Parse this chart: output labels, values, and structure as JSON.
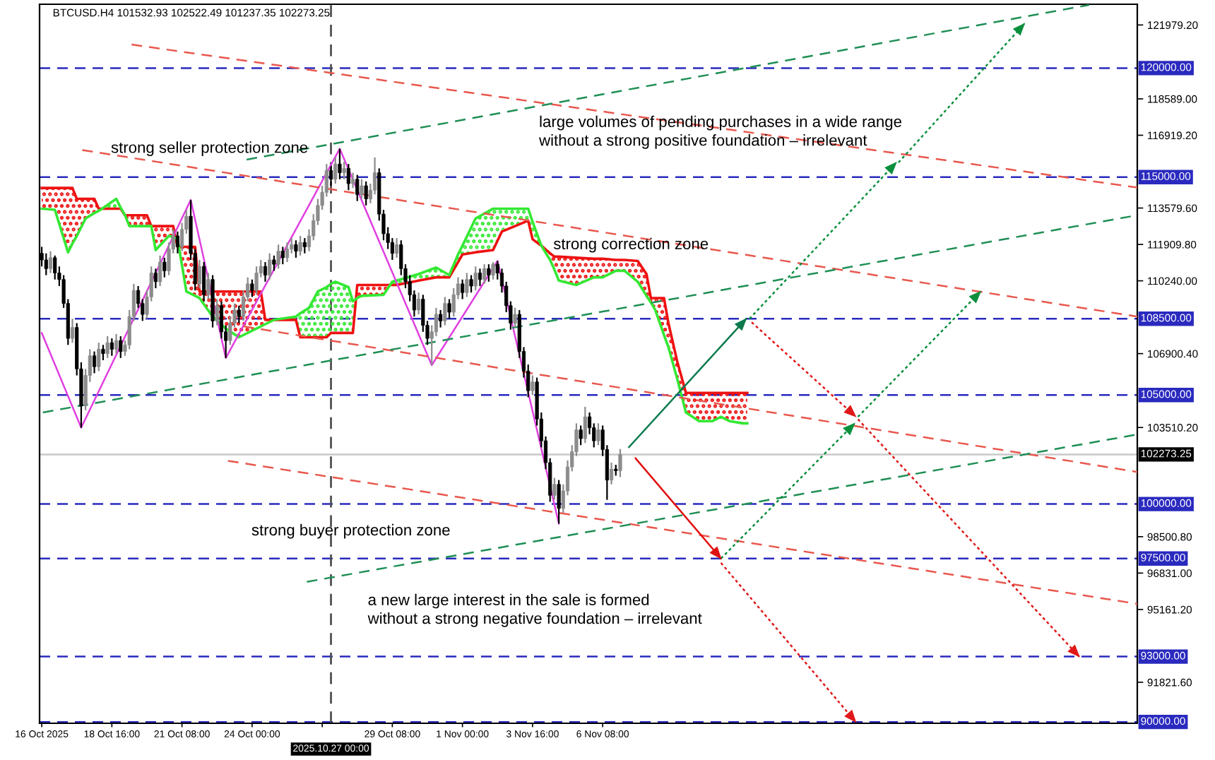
{
  "chart_data": {
    "type": "candlestick",
    "title": "BTCUSD.H4 101532.93 102522.49 101237.35 102273.25",
    "x": [
      "2025-10-16T00:00",
      "2025-10-16T04:00",
      "2025-10-16T08:00",
      "2025-10-16T12:00",
      "2025-10-16T16:00",
      "2025-10-16T20:00",
      "2025-10-17T00:00",
      "2025-10-17T04:00",
      "2025-10-17T08:00",
      "2025-10-17T12:00",
      "2025-10-17T16:00",
      "2025-10-17T20:00",
      "2025-10-18T00:00",
      "2025-10-18T04:00",
      "2025-10-18T08:00",
      "2025-10-18T12:00",
      "2025-10-18T16:00",
      "2025-10-18T20:00",
      "2025-10-19T00:00",
      "2025-10-19T04:00",
      "2025-10-19T08:00",
      "2025-10-19T12:00",
      "2025-10-19T16:00",
      "2025-10-19T20:00",
      "2025-10-20T00:00",
      "2025-10-20T04:00",
      "2025-10-20T08:00",
      "2025-10-20T12:00",
      "2025-10-20T16:00",
      "2025-10-20T20:00",
      "2025-10-21T00:00",
      "2025-10-21T04:00",
      "2025-10-21T08:00",
      "2025-10-21T12:00",
      "2025-10-21T16:00",
      "2025-10-21T20:00",
      "2025-10-22T00:00",
      "2025-10-22T04:00",
      "2025-10-22T08:00",
      "2025-10-22T12:00",
      "2025-10-22T16:00",
      "2025-10-22T20:00",
      "2025-10-23T00:00",
      "2025-10-23T04:00",
      "2025-10-23T08:00",
      "2025-10-23T12:00",
      "2025-10-23T16:00",
      "2025-10-23T20:00",
      "2025-10-24T00:00",
      "2025-10-24T04:00",
      "2025-10-24T08:00",
      "2025-10-24T12:00",
      "2025-10-24T16:00",
      "2025-10-24T20:00",
      "2025-10-25T00:00",
      "2025-10-25T04:00",
      "2025-10-25T08:00",
      "2025-10-25T12:00",
      "2025-10-25T16:00",
      "2025-10-25T20:00",
      "2025-10-26T00:00",
      "2025-10-26T04:00",
      "2025-10-26T08:00",
      "2025-10-26T12:00",
      "2025-10-26T16:00",
      "2025-10-26T20:00",
      "2025-10-27T00:00",
      "2025-10-27T04:00",
      "2025-10-27T08:00",
      "2025-10-27T12:00",
      "2025-10-27T16:00",
      "2025-10-27T20:00",
      "2025-10-28T00:00",
      "2025-10-28T04:00",
      "2025-10-28T08:00",
      "2025-10-28T12:00",
      "2025-10-28T16:00",
      "2025-10-28T20:00",
      "2025-10-29T00:00",
      "2025-10-29T04:00",
      "2025-10-29T08:00",
      "2025-10-29T12:00",
      "2025-10-29T16:00",
      "2025-10-29T20:00",
      "2025-10-30T00:00",
      "2025-10-30T04:00",
      "2025-10-30T08:00",
      "2025-10-30T12:00",
      "2025-10-30T16:00",
      "2025-10-30T20:00",
      "2025-10-31T00:00",
      "2025-10-31T04:00",
      "2025-10-31T08:00",
      "2025-10-31T12:00",
      "2025-10-31T16:00",
      "2025-10-31T20:00",
      "2025-11-01T00:00",
      "2025-11-01T04:00",
      "2025-11-01T08:00",
      "2025-11-01T12:00",
      "2025-11-01T16:00",
      "2025-11-01T20:00",
      "2025-11-02T00:00",
      "2025-11-02T04:00",
      "2025-11-02T08:00",
      "2025-11-02T12:00",
      "2025-11-02T16:00",
      "2025-11-02T20:00",
      "2025-11-03T00:00",
      "2025-11-03T04:00",
      "2025-11-03T08:00",
      "2025-11-03T12:00",
      "2025-11-03T16:00",
      "2025-11-03T20:00",
      "2025-11-04T00:00",
      "2025-11-04T04:00",
      "2025-11-04T08:00",
      "2025-11-04T12:00",
      "2025-11-04T16:00",
      "2025-11-04T20:00",
      "2025-11-05T00:00",
      "2025-11-05T04:00",
      "2025-11-05T08:00",
      "2025-11-05T12:00",
      "2025-11-05T16:00",
      "2025-11-05T20:00",
      "2025-11-06T00:00",
      "2025-11-06T04:00",
      "2025-11-06T08:00",
      "2025-11-06T12:00",
      "2025-11-06T16:00",
      "2025-11-06T20:00",
      "2025-11-07T00:00"
    ],
    "ohlc": [
      [
        111500,
        111800,
        110900,
        111200
      ],
      [
        111200,
        111500,
        110500,
        110800
      ],
      [
        110800,
        111600,
        110600,
        111300
      ],
      [
        111300,
        111400,
        110300,
        110600
      ],
      [
        110600,
        110900,
        110000,
        110300
      ],
      [
        110300,
        110500,
        109000,
        109200
      ],
      [
        109200,
        109400,
        107300,
        107600
      ],
      [
        107600,
        108500,
        107400,
        108100
      ],
      [
        108100,
        108300,
        105900,
        106200
      ],
      [
        106200,
        106500,
        103500,
        104500
      ],
      [
        104500,
        106200,
        104300,
        105900
      ],
      [
        105900,
        107100,
        105600,
        106800
      ],
      [
        106800,
        107000,
        106000,
        106300
      ],
      [
        106300,
        107400,
        106100,
        107100
      ],
      [
        107100,
        107300,
        106600,
        106900
      ],
      [
        106900,
        107700,
        106700,
        107400
      ],
      [
        107400,
        107600,
        106800,
        107100
      ],
      [
        107100,
        107800,
        106900,
        107500
      ],
      [
        107500,
        107700,
        106700,
        107000
      ],
      [
        107000,
        107500,
        106800,
        107300
      ],
      [
        107300,
        108900,
        107100,
        108600
      ],
      [
        108600,
        110100,
        108400,
        109800
      ],
      [
        109800,
        110000,
        109000,
        109200
      ],
      [
        109200,
        109400,
        108400,
        108700
      ],
      [
        108700,
        109800,
        108500,
        109500
      ],
      [
        109500,
        110900,
        109300,
        110600
      ],
      [
        110600,
        110800,
        109900,
        110200
      ],
      [
        110200,
        111400,
        110000,
        111100
      ],
      [
        111100,
        111300,
        110400,
        110700
      ],
      [
        110700,
        112000,
        110500,
        111700
      ],
      [
        111700,
        112600,
        111500,
        112300
      ],
      [
        112300,
        112500,
        111500,
        111800
      ],
      [
        111800,
        112900,
        111600,
        112600
      ],
      [
        112600,
        113500,
        112400,
        113200
      ],
      [
        113200,
        113950,
        111200,
        111500
      ],
      [
        111500,
        111700,
        109800,
        110100
      ],
      [
        110100,
        111200,
        109900,
        110900
      ],
      [
        110900,
        111100,
        109300,
        109600
      ],
      [
        109600,
        110600,
        109400,
        110300
      ],
      [
        110300,
        110500,
        108100,
        108400
      ],
      [
        108400,
        109400,
        108200,
        109100
      ],
      [
        109100,
        109300,
        107600,
        107900
      ],
      [
        107900,
        108200,
        106700,
        107500
      ],
      [
        107500,
        108600,
        107300,
        108300
      ],
      [
        108300,
        109200,
        108100,
        108900
      ],
      [
        108900,
        109100,
        108300,
        108600
      ],
      [
        108600,
        109800,
        108400,
        109500
      ],
      [
        109500,
        110400,
        109300,
        110100
      ],
      [
        110100,
        110300,
        109500,
        109800
      ],
      [
        109800,
        110900,
        109600,
        110600
      ],
      [
        110600,
        111200,
        110400,
        110900
      ],
      [
        110900,
        111100,
        110200,
        110500
      ],
      [
        110500,
        111500,
        110300,
        111200
      ],
      [
        111200,
        111400,
        110700,
        111000
      ],
      [
        111000,
        111900,
        110800,
        111600
      ],
      [
        111600,
        111800,
        111000,
        111300
      ],
      [
        111300,
        112000,
        111100,
        111700
      ],
      [
        111700,
        112200,
        111500,
        111900
      ],
      [
        111900,
        112100,
        111300,
        111600
      ],
      [
        111600,
        112300,
        111400,
        112000
      ],
      [
        112000,
        112200,
        111500,
        111800
      ],
      [
        111800,
        112600,
        111600,
        112300
      ],
      [
        112300,
        113300,
        112100,
        113000
      ],
      [
        113000,
        114000,
        112800,
        113700
      ],
      [
        113700,
        114600,
        113500,
        114300
      ],
      [
        114300,
        115600,
        114100,
        115300
      ],
      [
        115300,
        115500,
        114600,
        114900
      ],
      [
        114900,
        115900,
        114700,
        115600
      ],
      [
        115600,
        116300,
        114900,
        115200
      ],
      [
        115200,
        115700,
        114900,
        115400
      ],
      [
        115400,
        115600,
        114400,
        114700
      ],
      [
        114700,
        115200,
        114500,
        114900
      ],
      [
        114900,
        115100,
        113900,
        114200
      ],
      [
        114200,
        114900,
        114000,
        114600
      ],
      [
        114600,
        114800,
        113700,
        114000
      ],
      [
        114000,
        114700,
        113800,
        114400
      ],
      [
        114400,
        115900,
        114200,
        115200
      ],
      [
        115200,
        115400,
        113000,
        113300
      ],
      [
        113300,
        113500,
        112100,
        112400
      ],
      [
        112400,
        112700,
        111700,
        112000
      ],
      [
        112000,
        112200,
        111200,
        111500
      ],
      [
        111500,
        112200,
        111300,
        111900
      ],
      [
        111900,
        112100,
        110500,
        110800
      ],
      [
        110800,
        111000,
        109900,
        110200
      ],
      [
        110200,
        110500,
        109300,
        109600
      ],
      [
        109600,
        109800,
        108600,
        108900
      ],
      [
        108900,
        109700,
        108700,
        109400
      ],
      [
        109400,
        109600,
        107900,
        108200
      ],
      [
        108200,
        108400,
        107300,
        107600
      ],
      [
        107600,
        108200,
        106370,
        107900
      ],
      [
        107900,
        109000,
        107700,
        108700
      ],
      [
        108700,
        108900,
        108100,
        108400
      ],
      [
        108400,
        109500,
        108200,
        109200
      ],
      [
        109200,
        109400,
        108500,
        108800
      ],
      [
        108800,
        109900,
        108600,
        109600
      ],
      [
        109600,
        110400,
        109400,
        110100
      ],
      [
        110100,
        110300,
        109400,
        109700
      ],
      [
        109700,
        110600,
        109500,
        110300
      ],
      [
        110300,
        110500,
        109700,
        110000
      ],
      [
        110000,
        110900,
        109800,
        110600
      ],
      [
        110600,
        110800,
        110000,
        110300
      ],
      [
        110300,
        111000,
        110100,
        110800
      ],
      [
        110800,
        111000,
        110200,
        110500
      ],
      [
        110500,
        111100,
        110300,
        111000
      ],
      [
        111000,
        111150,
        110300,
        110600
      ],
      [
        110600,
        110800,
        109700,
        110000
      ],
      [
        110000,
        110200,
        108800,
        109100
      ],
      [
        109100,
        109300,
        108000,
        108300
      ],
      [
        108300,
        109000,
        108100,
        108700
      ],
      [
        108700,
        108900,
        106700,
        107000
      ],
      [
        107000,
        107200,
        105800,
        106100
      ],
      [
        106100,
        106400,
        104900,
        105200
      ],
      [
        105200,
        105900,
        105000,
        105600
      ],
      [
        105600,
        105800,
        103600,
        103900
      ],
      [
        103900,
        104200,
        102600,
        102900
      ],
      [
        102900,
        103100,
        101600,
        101900
      ],
      [
        101900,
        102100,
        100100,
        100400
      ],
      [
        100400,
        101200,
        100200,
        100900
      ],
      [
        100900,
        101100,
        99100,
        99800
      ],
      [
        99800,
        100900,
        99600,
        100600
      ],
      [
        100600,
        102000,
        100400,
        101700
      ],
      [
        101700,
        102700,
        101500,
        102400
      ],
      [
        102400,
        103700,
        102200,
        103400
      ],
      [
        103400,
        103600,
        102700,
        103000
      ],
      [
        103000,
        104460,
        102800,
        104000
      ],
      [
        104000,
        104200,
        103200,
        103500
      ],
      [
        103500,
        103700,
        102600,
        102900
      ],
      [
        102900,
        103700,
        102700,
        103400
      ],
      [
        103400,
        103600,
        102200,
        102500
      ],
      [
        102500,
        102700,
        100190,
        101100
      ],
      [
        101100,
        101900,
        100900,
        101600
      ],
      [
        101600,
        101800,
        101300,
        101530
      ],
      [
        101532.93,
        102522.49,
        101237.35,
        102273.25
      ]
    ],
    "series": [
      {
        "type": "line",
        "color": "#ee1111",
        "x": [
          "2025-10-16T00:00",
          "2025-10-16T12:00",
          "2025-10-17T00:00",
          "2025-10-17T04:00",
          "2025-10-17T08:00",
          "2025-10-17T16:00",
          "2025-10-18T00:00",
          "2025-10-18T04:00",
          "2025-10-18T07:00",
          "2025-10-18T20:00",
          "2025-10-19T00:00",
          "2025-10-19T04:00",
          "2025-10-19T08:00",
          "2025-10-20T00:00",
          "2025-10-20T04:00",
          "2025-10-20T08:00",
          "2025-10-20T20:00",
          "2025-10-21T00:00",
          "2025-10-21T02:20",
          "2025-10-21T04:00",
          "2025-10-21T05:10",
          "2025-10-21T12:00",
          "2025-10-21T20:00",
          "2025-10-22T00:00",
          "2025-10-22T12:00",
          "2025-10-23T00:00",
          "2025-10-23T12:00",
          "2025-10-24T04:00",
          "2025-10-24T08:00",
          "2025-10-24T12:00",
          "2025-10-24T20:00",
          "2025-10-25T16:00",
          "2025-10-25T20:00",
          "2025-10-26T04:00",
          "2025-10-26T12:00",
          "2025-10-26T20:00",
          "2025-10-27T00:00",
          "2025-10-27T04:00",
          "2025-10-27T16:00",
          "2025-10-27T20:00",
          "2025-10-27T22:50",
          "2025-10-28T00:00",
          "2025-10-28T04:00",
          "2025-10-29T00:00",
          "2025-10-29T06:00",
          "2025-10-29T08:00",
          "2025-10-29T12:00",
          "2025-10-30T08:00",
          "2025-10-31T00:00",
          "2025-10-31T12:00",
          "2025-10-31T20:00",
          "2025-11-01T00:00",
          "2025-11-01T12:00",
          "2025-11-02T04:00",
          "2025-11-02T12:00",
          "2025-11-03T12:00",
          "2025-11-03T16:00",
          "2025-11-04T00:00",
          "2025-11-04T08:00",
          "2025-11-04T12:00",
          "2025-11-04T16:00",
          "2025-11-05T08:00",
          "2025-11-06T00:00",
          "2025-11-06T08:00",
          "2025-11-06T20:00",
          "2025-11-07T04:00",
          "2025-11-07T16:00",
          "2025-11-08T00:00",
          "2025-11-08T04:00",
          "2025-11-08T08:00",
          "2025-11-08T16:00",
          "2025-11-08T20:00",
          "2025-11-09T04:00",
          "2025-11-09T12:00",
          "2025-11-10T00:00",
          "2025-11-10T12:00",
          "2025-11-10T20:00",
          "2025-11-11T04:00",
          "2025-11-11T16:00",
          "2025-11-11T20:00"
        ],
        "values": [
          114500,
          114500,
          114500,
          114500,
          114000,
          114000,
          114000,
          113550,
          113550,
          113550,
          113550,
          113250,
          113250,
          113250,
          112750,
          112750,
          112750,
          112750,
          112200,
          111800,
          111800,
          111800,
          111800,
          109750,
          109750,
          109750,
          109750,
          109750,
          109750,
          108450,
          108450,
          108450,
          107650,
          107650,
          107650,
          107650,
          107850,
          107850,
          107850,
          107850,
          109400,
          110050,
          110050,
          110050,
          110050,
          110050,
          110050,
          110250,
          110400,
          110400,
          111100,
          111450,
          111550,
          111650,
          112500,
          113000,
          112150,
          111850,
          111500,
          111350,
          111350,
          111300,
          111250,
          111250,
          111200,
          111200,
          111150,
          110550,
          109450,
          109450,
          109450,
          108300,
          106550,
          105100,
          105100,
          105100,
          105100,
          105100,
          105100,
          105100
        ],
        "lower": [
          113550,
          113500,
          111550,
          111950,
          112300,
          113100,
          113350,
          113450,
          113550,
          null,
          null,
          113250,
          112750,
          112750,
          112750,
          111650,
          112300,
          112250,
          112200,
          null,
          111800,
          109750,
          109550,
          109450,
          108600,
          108050,
          107650,
          108050,
          108150,
          108250,
          108450,
          null,
          null,
          null,
          null,
          null,
          null,
          null,
          null,
          null,
          109400,
          109450,
          109550,
          109600,
          110050,
          null,
          null,
          null,
          null,
          null,
          null,
          null,
          null,
          null,
          null,
          null,
          null,
          111850,
          111200,
          110750,
          110250,
          110050,
          110400,
          110400,
          110700,
          110700,
          110200,
          109550,
          109250,
          108900,
          107750,
          107200,
          105750,
          104200,
          103800,
          103800,
          104000,
          103800,
          103700,
          103700
        ],
        "upper": [
          114500,
          114500,
          114500,
          114500,
          114000,
          114000,
          114000,
          113550,
          113550,
          null,
          null,
          113250,
          113250,
          113250,
          112750,
          112750,
          112750,
          112750,
          112200,
          null,
          111800,
          111800,
          111800,
          109750,
          109750,
          109750,
          109750,
          109750,
          109750,
          108450,
          108450,
          null,
          null,
          null,
          null,
          null,
          null,
          null,
          null,
          null,
          109400,
          110050,
          110050,
          110050,
          110050,
          null,
          null,
          null,
          null,
          null,
          null,
          null,
          null,
          null,
          null,
          null,
          null,
          111850,
          111500,
          111350,
          111350,
          111300,
          111250,
          111250,
          111200,
          111200,
          111150,
          110550,
          109450,
          109450,
          109450,
          108300,
          106550,
          105100,
          105100,
          105100,
          105100,
          105100,
          105100,
          105100
        ]
      },
      {
        "type": "line",
        "color": "#33e833",
        "x": [
          "2025-10-16T00:00",
          "2025-10-16T12:00",
          "2025-10-17T00:00",
          "2025-10-17T04:00",
          "2025-10-17T08:00",
          "2025-10-17T16:00",
          "2025-10-18T00:00",
          "2025-10-18T04:00",
          "2025-10-18T07:00",
          "2025-10-18T20:00",
          "2025-10-19T00:00",
          "2025-10-19T04:00",
          "2025-10-19T08:00",
          "2025-10-20T00:00",
          "2025-10-20T04:00",
          "2025-10-20T08:00",
          "2025-10-20T20:00",
          "2025-10-21T00:00",
          "2025-10-21T02:20",
          "2025-10-21T04:00",
          "2025-10-21T05:10",
          "2025-10-21T12:00",
          "2025-10-21T20:00",
          "2025-10-22T00:00",
          "2025-10-22T12:00",
          "2025-10-23T00:00",
          "2025-10-23T12:00",
          "2025-10-24T04:00",
          "2025-10-24T08:00",
          "2025-10-24T12:00",
          "2025-10-24T20:00",
          "2025-10-25T16:00",
          "2025-10-25T20:00",
          "2025-10-26T04:00",
          "2025-10-26T12:00",
          "2025-10-26T20:00",
          "2025-10-27T00:00",
          "2025-10-27T04:00",
          "2025-10-27T16:00",
          "2025-10-27T20:00",
          "2025-10-27T22:50",
          "2025-10-28T00:00",
          "2025-10-28T04:00",
          "2025-10-29T00:00",
          "2025-10-29T06:00",
          "2025-10-29T08:00",
          "2025-10-29T12:00",
          "2025-10-30T08:00",
          "2025-10-31T00:00",
          "2025-10-31T12:00",
          "2025-10-31T20:00",
          "2025-11-01T00:00",
          "2025-11-01T12:00",
          "2025-11-02T04:00",
          "2025-11-02T12:00",
          "2025-11-03T12:00",
          "2025-11-03T16:00",
          "2025-11-04T00:00",
          "2025-11-04T08:00",
          "2025-11-04T12:00",
          "2025-11-04T16:00",
          "2025-11-05T08:00",
          "2025-11-06T00:00",
          "2025-11-06T08:00",
          "2025-11-06T20:00",
          "2025-11-07T04:00",
          "2025-11-07T16:00",
          "2025-11-08T00:00",
          "2025-11-08T04:00",
          "2025-11-08T08:00",
          "2025-11-08T16:00",
          "2025-11-08T20:00",
          "2025-11-09T04:00",
          "2025-11-09T12:00",
          "2025-11-10T00:00",
          "2025-11-10T12:00",
          "2025-11-10T20:00",
          "2025-11-11T04:00",
          "2025-11-11T16:00",
          "2025-11-11T20:00"
        ],
        "values": [
          113550,
          113500,
          111550,
          111950,
          112300,
          113100,
          113350,
          113450,
          113550,
          114000,
          113600,
          113250,
          112750,
          112750,
          112750,
          111650,
          112300,
          112250,
          112200,
          112150,
          111800,
          109750,
          109550,
          109450,
          108600,
          108050,
          107650,
          108050,
          108150,
          108250,
          108450,
          108600,
          108750,
          109000,
          109750,
          109950,
          110100,
          110200,
          109950,
          109300,
          109400,
          109450,
          109550,
          109600,
          110050,
          110200,
          110250,
          110550,
          110850,
          110500,
          111450,
          111850,
          113100,
          113550,
          113550,
          113550,
          112950,
          111850,
          111200,
          110750,
          110250,
          110050,
          110400,
          110400,
          110700,
          110700,
          110200,
          109550,
          109250,
          108900,
          107750,
          107200,
          105750,
          104200,
          103800,
          103800,
          104000,
          103800,
          103700,
          103700
        ],
        "lower": [
          null,
          null,
          null,
          null,
          null,
          null,
          null,
          null,
          113550,
          113550,
          113550,
          113250,
          null,
          null,
          null,
          null,
          null,
          null,
          null,
          null,
          null,
          null,
          null,
          null,
          null,
          null,
          null,
          null,
          null,
          null,
          108450,
          108450,
          107650,
          107650,
          107650,
          107650,
          107850,
          107850,
          107850,
          107850,
          109400,
          null,
          null,
          null,
          110050,
          110050,
          110050,
          110250,
          110400,
          110400,
          111100,
          111450,
          111550,
          111650,
          112500,
          113000,
          112150,
          111850,
          null,
          null,
          null,
          null,
          null,
          null,
          null,
          null,
          null,
          null,
          null,
          null,
          null,
          null,
          null,
          null,
          null,
          null,
          null,
          null,
          null,
          null
        ],
        "upper": [
          null,
          null,
          null,
          null,
          null,
          null,
          null,
          null,
          113550,
          114000,
          113600,
          113250,
          null,
          null,
          null,
          null,
          null,
          null,
          null,
          null,
          null,
          null,
          null,
          null,
          null,
          null,
          null,
          null,
          null,
          null,
          108450,
          108600,
          108750,
          109000,
          109750,
          109950,
          110100,
          110200,
          109950,
          109300,
          109400,
          null,
          null,
          null,
          110050,
          110200,
          110250,
          110550,
          110850,
          110500,
          111450,
          111850,
          113100,
          113550,
          113550,
          113550,
          112950,
          111850,
          null,
          null,
          null,
          null,
          null,
          null,
          null,
          null,
          null,
          null,
          null,
          null,
          null,
          null,
          null,
          null,
          null,
          null,
          null,
          null,
          null,
          null
        ]
      },
      {
        "type": "line",
        "color": "#e040e0",
        "x": [
          "2025-10-16T00:00",
          "2025-10-17T12:00",
          "2025-10-21T16:00",
          "2025-10-23T00:00",
          "2025-10-27T08:00",
          "2025-10-30T20:00",
          "2025-11-02T08:00",
          "2025-11-04T16:00"
        ],
        "values": [
          107850,
          103500,
          113950,
          106700,
          116300,
          106370,
          111150,
          99100
        ]
      },
      {
        "type": "line",
        "color": "#e8584e",
        "line_style": "dashed",
        "x": [
          "2025-10-19T10:00",
          "2025-11-26T16:00"
        ],
        "values": [
          121080,
          114520
        ]
      },
      {
        "type": "line",
        "color": "#e8584e",
        "line_style": "dashed",
        "x": [
          "2025-10-17T13:00",
          "2025-11-26T16:00"
        ],
        "values": [
          116240,
          108600
        ]
      },
      {
        "type": "line",
        "color": "#e8584e",
        "line_style": "dashed",
        "x": [
          "2025-10-23T16:00",
          "2025-11-26T16:00"
        ],
        "values": [
          108150,
          101470
        ]
      },
      {
        "type": "line",
        "color": "#e8584e",
        "line_style": "dashed",
        "x": [
          "2025-10-23T02:00",
          "2025-11-26T16:00"
        ],
        "values": [
          101980,
          95420
        ]
      },
      {
        "type": "line",
        "color": "#1f8f55",
        "line_style": "dashed",
        "x": [
          "2025-10-23T19:00",
          "2025-11-24T20:00"
        ],
        "values": [
          115800,
          122900
        ]
      },
      {
        "type": "line",
        "color": "#1f8f55",
        "line_style": "dashed",
        "x": [
          "2025-10-16T01:00",
          "2025-11-26T16:00"
        ],
        "values": [
          104200,
          113250
        ]
      },
      {
        "type": "line",
        "color": "#1f8f55",
        "line_style": "dashed",
        "x": [
          "2025-10-26T02:00",
          "2025-11-26T16:00"
        ],
        "values": [
          96430,
          103190
        ]
      },
      {
        "type": "line",
        "color": "#0b7a4c",
        "x": [
          "2025-11-07T08:00",
          "2025-11-11T19:00"
        ],
        "values": [
          102610,
          108500
        ]
      },
      {
        "type": "line",
        "color": "#e01010",
        "x": [
          "2025-11-07T14:00",
          "2025-11-10T20:00"
        ],
        "values": [
          102100,
          97500
        ]
      },
      {
        "type": "line",
        "color": "#0a8f3c",
        "line_style": "dotted",
        "x": [
          "2025-11-11T22:00",
          "2025-11-17T12:00"
        ],
        "values": [
          108500,
          115670
        ]
      },
      {
        "type": "line",
        "color": "#0a8f3c",
        "line_style": "dotted",
        "x": [
          "2025-11-17T14:00",
          "2025-11-22T09:00"
        ],
        "values": [
          115670,
          122040
        ]
      },
      {
        "type": "line",
        "color": "#0a8f3c",
        "line_style": "dotted",
        "x": [
          "2025-11-16T01:00",
          "2025-11-20T17:00"
        ],
        "values": [
          104000,
          109750
        ]
      },
      {
        "type": "line",
        "color": "#0a8f3c",
        "line_style": "dotted",
        "x": [
          "2025-11-10T20:00",
          "2025-11-15T22:00"
        ],
        "values": [
          97500,
          103700
        ]
      },
      {
        "type": "line",
        "color": "#e01818",
        "line_style": "dotted",
        "x": [
          "2025-11-12T00:00",
          "2025-11-15T23:00"
        ],
        "values": [
          108340,
          104010
        ]
      },
      {
        "type": "line",
        "color": "#e01818",
        "line_style": "dotted",
        "x": [
          "2025-11-16T01:00",
          "2025-11-24T11:00"
        ],
        "values": [
          103890,
          93000
        ]
      },
      {
        "type": "line",
        "color": "#e01818",
        "line_style": "dotted",
        "x": [
          "2025-11-10T20:00",
          "2025-11-15T23:00"
        ],
        "values": [
          97300,
          90000
        ]
      }
    ],
    "xlim": [
      "2025-10-15T22:00",
      "2025-11-26T16:00"
    ],
    "xticks": [
      {
        "value": "2025-10-16T00:00",
        "label": "16 Oct 2025"
      },
      {
        "value": "2025-10-18T16:00",
        "label": "18 Oct 16:00"
      },
      {
        "value": "2025-10-21T08:00",
        "label": "21 Oct 08:00"
      },
      {
        "value": "2025-10-24T00:00",
        "label": "24 Oct 00:00"
      },
      {
        "value": "2025-10-26T16:00",
        "label": null
      },
      {
        "value": "2025-10-29T08:00",
        "label": "29 Oct 08:00"
      },
      {
        "value": "2025-11-01T00:00",
        "label": "1 Nov 00:00"
      },
      {
        "value": "2025-11-03T16:00",
        "label": "3 Nov 16:00"
      },
      {
        "value": "2025-11-06T08:00",
        "label": "6 Nov 08:00"
      }
    ],
    "ylim": [
      89940,
      122930
    ],
    "yticks": [
      {
        "value": 121979.2,
        "label": "121979.20"
      },
      {
        "value": 118589.0,
        "label": "118589.00"
      },
      {
        "value": 116919.2,
        "label": "116919.20"
      },
      {
        "value": 113579.6,
        "label": "113579.60"
      },
      {
        "value": 111909.8,
        "label": "111909.80"
      },
      {
        "value": 110240.0,
        "label": "110240.00"
      },
      {
        "value": 106900.4,
        "label": "106900.40"
      },
      {
        "value": 103510.2,
        "label": "103510.20"
      },
      {
        "value": 98500.8,
        "label": "98500.80"
      },
      {
        "value": 96831.0,
        "label": "96831.00"
      },
      {
        "value": 95161.2,
        "label": "95161.20"
      },
      {
        "value": 91821.6,
        "label": "91821.60"
      }
    ],
    "ref_lines": [
      {
        "axis": "y",
        "value": 120000,
        "label": "120000.00",
        "color": "#2a2abf",
        "line_style": "dashed"
      },
      {
        "axis": "y",
        "value": 115000,
        "label": "115000.00",
        "color": "#2a2abf",
        "line_style": "dashed"
      },
      {
        "axis": "y",
        "value": 108500,
        "label": "108500.00",
        "color": "#2a2abf",
        "line_style": "dashed"
      },
      {
        "axis": "y",
        "value": 105000,
        "label": "105000.00",
        "color": "#2a2abf",
        "line_style": "dashed"
      },
      {
        "axis": "y",
        "value": 102273.25,
        "label": "102273.25",
        "color": "#c8c8c8",
        "line_style": "solid"
      },
      {
        "axis": "y",
        "value": 100000,
        "label": "100000.00",
        "color": "#2a2abf",
        "line_style": "dashed"
      },
      {
        "axis": "y",
        "value": 97500,
        "label": "97500.00",
        "color": "#2a2abf",
        "line_style": "dashed"
      },
      {
        "axis": "y",
        "value": 93000,
        "label": "93000.00",
        "color": "#2a2abf",
        "line_style": "dashed"
      },
      {
        "axis": "y",
        "value": 90000,
        "label": "90000.00",
        "color": "#2a2abf",
        "line_style": "dashed"
      },
      {
        "axis": "x",
        "value": "2025-10-27T00:00",
        "label": "2025.10.27 00:00",
        "color": "#505050",
        "line_style": "dashed"
      }
    ],
    "annotations": [
      "strong seller protection zone",
      "large volumes of pending purchases in a wide range\nwithout a strong positive foundation – irrelevant",
      "strong correction zone",
      "strong buyer protection zone",
      "a new large interest in the sale is formed\nwithout a strong negative foundation – irrelevant"
    ],
    "grid": false
  }
}
